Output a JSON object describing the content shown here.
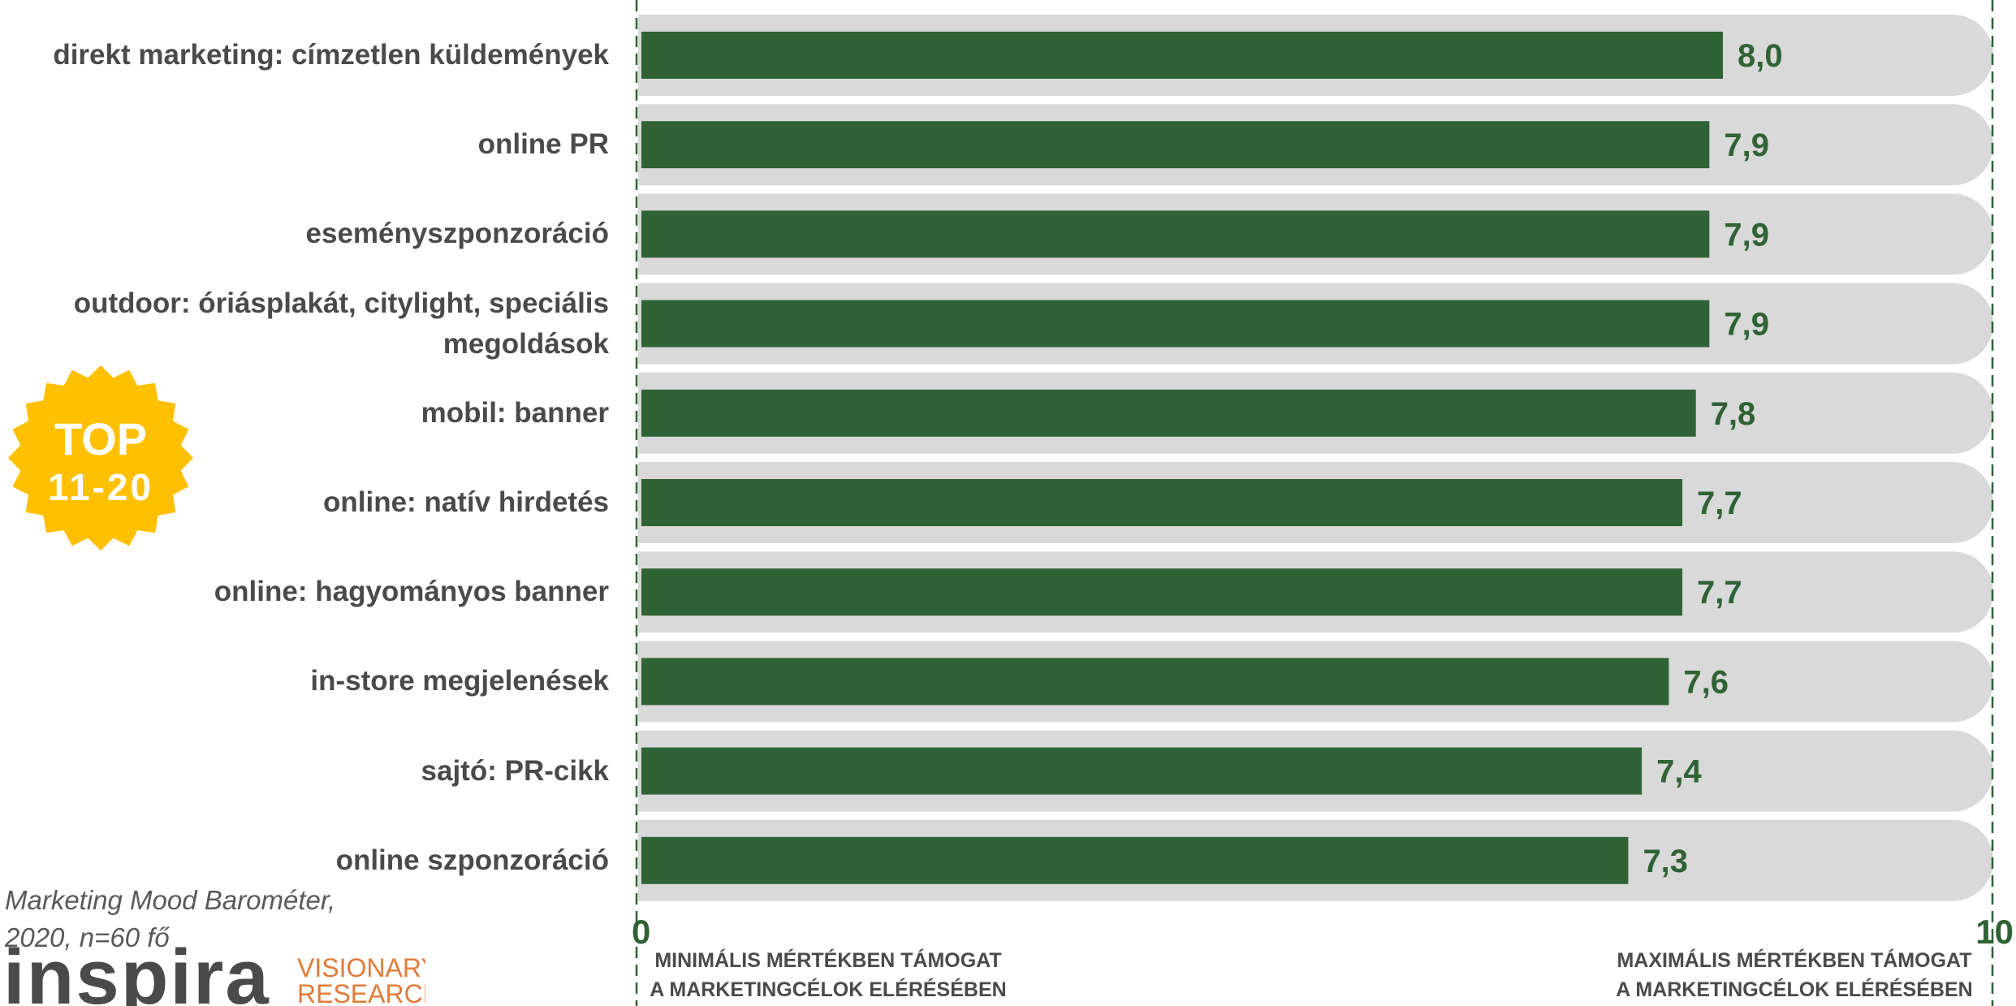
{
  "chart_data": {
    "type": "bar",
    "orientation": "horizontal",
    "categories": [
      "direkt marketing: címzetlen küldemények",
      "online PR",
      "eseményszponzoráció",
      "outdoor: óriásplakát, citylight, speciális megoldások",
      "mobil: banner",
      "online: natív hirdetés",
      "online: hagyományos banner",
      "in-store megjelenések",
      "sajtó: PR-cikk",
      "online szponzoráció"
    ],
    "values": [
      8.0,
      7.9,
      7.9,
      7.9,
      7.8,
      7.7,
      7.7,
      7.6,
      7.4,
      7.3
    ],
    "value_labels": [
      "8,0",
      "7,9",
      "7,9",
      "7,9",
      "7,8",
      "7,7",
      "7,7",
      "7,6",
      "7,4",
      "7,3"
    ],
    "xlim": [
      0,
      10
    ],
    "x_tick_labels": [
      "0",
      "10"
    ],
    "x_min_caption": [
      "MINIMÁLIS MÉRTÉKBEN TÁMOGAT",
      "A MARKETINGCÉLOK ELÉRÉSÉBEN"
    ],
    "x_max_caption": [
      "MAXIMÁLIS MÉRTÉKBEN TÁMOGAT",
      "A MARKETINGCÉLOK ELÉRÉSÉBEN"
    ],
    "grid": false,
    "legend": "none",
    "bar_color": "#2f6234",
    "track_color": "#d9d9d9",
    "reference_line_color": "#2f6234"
  },
  "badge": {
    "line1": "TOP",
    "line2": "11-20",
    "color": "#ffc000"
  },
  "source": {
    "line1": "Marketing Mood Barométer,",
    "line2": "2020, n=60 fő"
  },
  "logo": {
    "word": "inspira",
    "sub1": "VISIONARY",
    "sub2": "RESEARCH",
    "word_color": "#4a4a4a",
    "sub_color": "#e07b39"
  }
}
